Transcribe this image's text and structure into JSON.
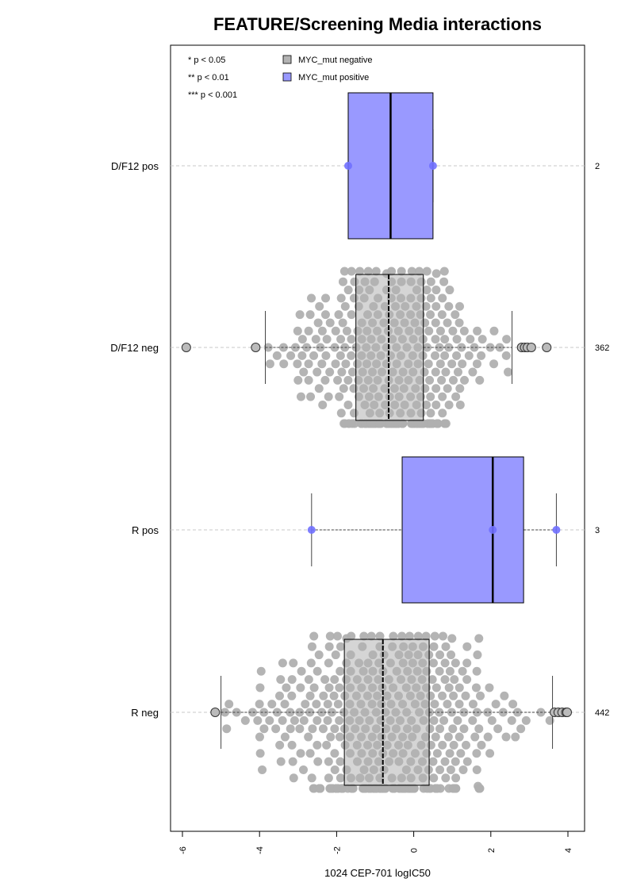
{
  "chart_data": {
    "type": "boxplot-beeswarm",
    "title": "FEATURE/Screening Media interactions",
    "xlabel": "1024 CEP-701 logIC50",
    "orientation": "horizontal",
    "xlim": [
      -6.3,
      4.3
    ],
    "xticks": [
      -6,
      -4,
      -2,
      0,
      2,
      4
    ],
    "xtick_labels": [
      "-6",
      "-4",
      "-2",
      "0",
      "2",
      "4"
    ],
    "grid": "dashed horizontal line per group",
    "legend_position": "top-left",
    "significance_key": [
      "* p < 0.05",
      "** p < 0.01",
      "*** p < 0.001"
    ],
    "legend": [
      {
        "label": "MYC_mut negative",
        "color": "#b3b3b3"
      },
      {
        "label": "MYC_mut positive",
        "color": "#9999ff"
      }
    ],
    "colors": {
      "negative_box": "#b3b3b3",
      "negative_point": "#b0b0b0",
      "positive_box": "#9999ff",
      "positive_point": "#7070ff"
    },
    "groups": [
      {
        "label": "R neg",
        "n_label": "442",
        "status": "negative",
        "box": {
          "q1": -1.8,
          "median": -0.8,
          "q3": 0.4,
          "whisker_low": -5.0,
          "whisker_high": 3.6
        },
        "outliers": [
          -5.15,
          3.65,
          3.75,
          3.85,
          3.95,
          3.98
        ],
        "spread_min": -5.0,
        "spread_max": 3.55,
        "center": -0.7,
        "sd": 1.6,
        "n_points": 442
      },
      {
        "label": "R pos",
        "n_label": "3",
        "status": "positive",
        "box": {
          "q1": -0.3,
          "median": 2.05,
          "q3": 2.85,
          "whisker_low": -2.65,
          "whisker_high": 3.7
        },
        "points": [
          -2.65,
          2.05,
          3.7
        ]
      },
      {
        "label": "D/F12 neg",
        "n_label": "362",
        "status": "negative",
        "box": {
          "q1": -1.5,
          "median": -0.65,
          "q3": 0.25,
          "whisker_low": -3.85,
          "whisker_high": 2.55
        },
        "outliers": [
          -5.9,
          -4.1,
          2.8,
          2.88,
          2.95,
          3.05,
          3.45
        ],
        "spread_min": -3.8,
        "spread_max": 2.5,
        "center": -0.6,
        "sd": 1.15,
        "n_points": 362
      },
      {
        "label": "D/F12 pos",
        "n_label": "2",
        "status": "positive",
        "box": {
          "q1": -1.7,
          "median": -0.6,
          "q3": 0.5,
          "whisker_low": -1.7,
          "whisker_high": 0.5
        },
        "points": [
          -1.7,
          0.5
        ]
      }
    ]
  }
}
